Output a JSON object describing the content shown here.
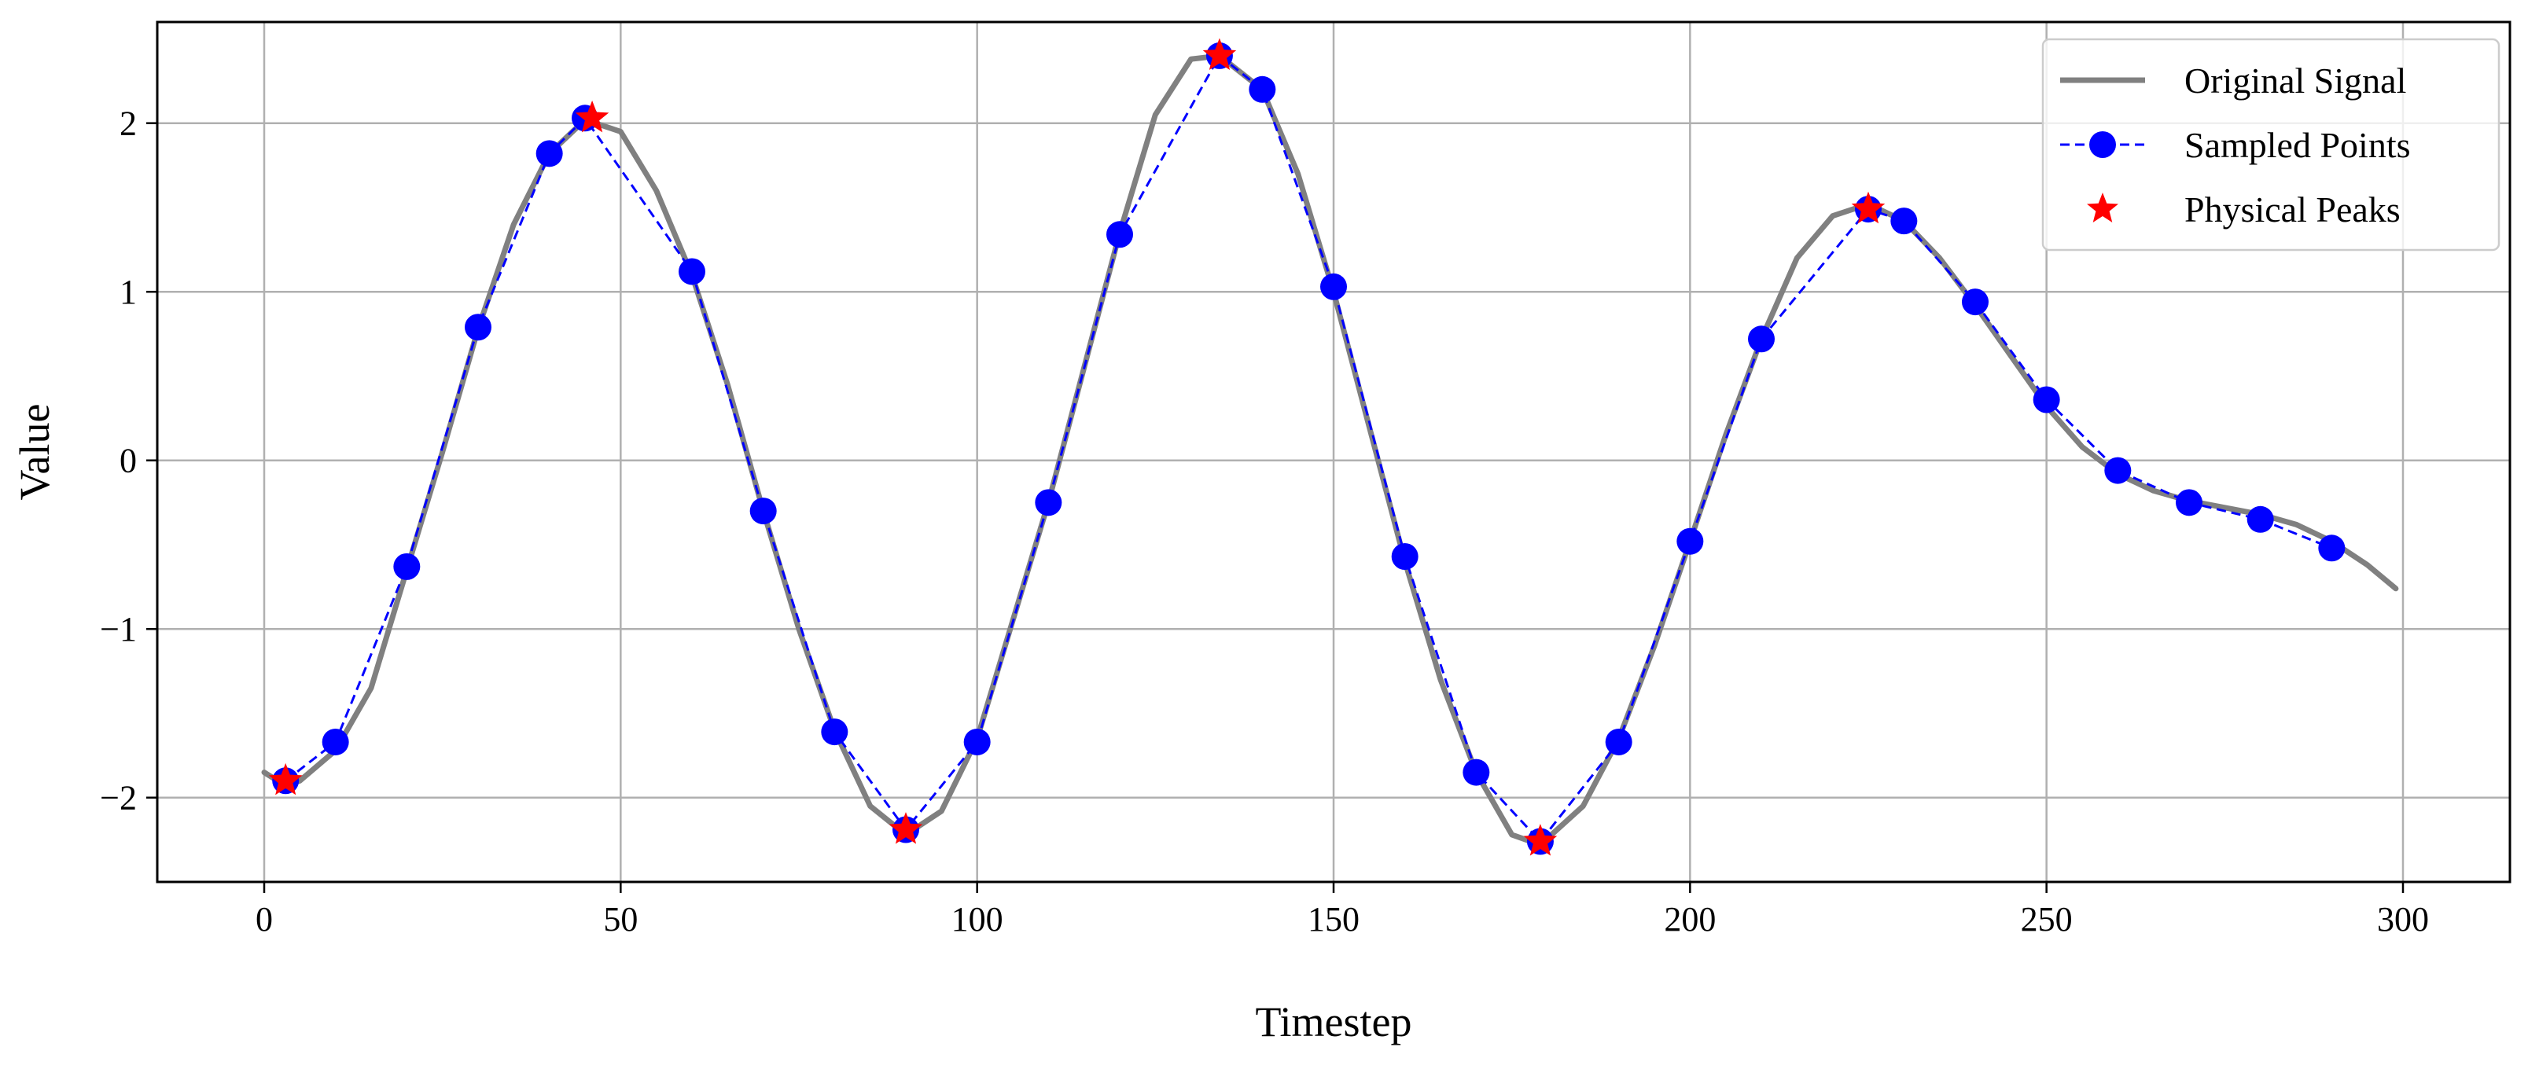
{
  "chart_data": {
    "type": "line",
    "title": "",
    "xlabel": "Timestep",
    "ylabel": "Value",
    "xlim": [
      -15,
      315
    ],
    "ylim": [
      -2.5,
      2.6
    ],
    "xticks": [
      0,
      50,
      100,
      150,
      200,
      250,
      300
    ],
    "xtick_labels": [
      "0",
      "50",
      "100",
      "150",
      "200",
      "250",
      "300"
    ],
    "yticks": [
      -2,
      -1,
      0,
      1,
      2
    ],
    "ytick_labels": [
      "−2",
      "−1",
      "0",
      "1",
      "2"
    ],
    "grid": true,
    "legend_position": "top-right",
    "series": [
      {
        "name": "Original Signal",
        "style": "solid-line",
        "color": "#808080",
        "x": [
          0,
          3,
          5,
          10,
          15,
          20,
          25,
          30,
          35,
          40,
          45,
          50,
          55,
          60,
          65,
          70,
          75,
          80,
          85,
          90,
          95,
          100,
          105,
          110,
          115,
          120,
          125,
          130,
          134,
          140,
          145,
          150,
          155,
          160,
          165,
          170,
          175,
          179,
          185,
          190,
          195,
          200,
          205,
          210,
          215,
          220,
          225,
          230,
          235,
          240,
          245,
          250,
          255,
          260,
          265,
          270,
          275,
          280,
          285,
          290,
          295,
          299
        ],
        "y": [
          -1.85,
          -1.93,
          -1.9,
          -1.72,
          -1.35,
          -0.65,
          0.05,
          0.78,
          1.4,
          1.82,
          2.02,
          1.95,
          1.6,
          1.1,
          0.45,
          -0.3,
          -1.0,
          -1.6,
          -2.05,
          -2.22,
          -2.08,
          -1.65,
          -0.95,
          -0.25,
          0.55,
          1.35,
          2.05,
          2.38,
          2.4,
          2.2,
          1.7,
          1.0,
          0.2,
          -0.6,
          -1.3,
          -1.85,
          -2.22,
          -2.28,
          -2.05,
          -1.65,
          -1.1,
          -0.48,
          0.15,
          0.72,
          1.2,
          1.45,
          1.52,
          1.42,
          1.2,
          0.92,
          0.62,
          0.32,
          0.08,
          -0.08,
          -0.18,
          -0.24,
          -0.28,
          -0.32,
          -0.38,
          -0.48,
          -0.62,
          -0.76
        ]
      },
      {
        "name": "Sampled Points",
        "style": "dashed-line-with-circles",
        "color": "#0000ff",
        "x": [
          3,
          10,
          20,
          30,
          40,
          45,
          60,
          70,
          80,
          90,
          100,
          110,
          120,
          134,
          140,
          150,
          160,
          170,
          179,
          190,
          200,
          210,
          225,
          230,
          240,
          250,
          260,
          270,
          280,
          290
        ],
        "y": [
          -1.9,
          -1.67,
          -0.63,
          0.79,
          1.82,
          2.03,
          1.12,
          -0.3,
          -1.61,
          -2.19,
          -1.67,
          -0.25,
          1.34,
          2.4,
          2.2,
          1.03,
          -0.57,
          -1.85,
          -2.26,
          -1.67,
          -0.48,
          0.72,
          1.49,
          1.42,
          0.94,
          0.36,
          -0.06,
          -0.25,
          -0.35,
          -0.52
        ]
      },
      {
        "name": "Physical Peaks",
        "style": "star-markers",
        "color": "#ff0000",
        "x": [
          3,
          46,
          90,
          134,
          179,
          225
        ],
        "y": [
          -1.9,
          2.03,
          -2.19,
          2.4,
          -2.26,
          1.49
        ]
      }
    ]
  }
}
